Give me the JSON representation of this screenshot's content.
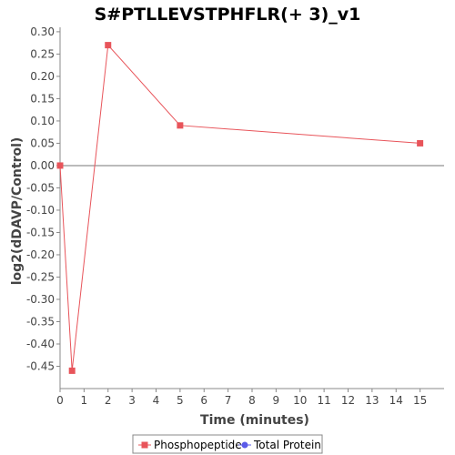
{
  "chart_data": {
    "type": "line",
    "title": "S#PTLLEVSTPHFLR(+ 3)_v1",
    "xlabel": "Time (minutes)",
    "ylabel": "log2(dDAVP/Control)",
    "xlim": [
      0,
      16
    ],
    "ylim": [
      -0.5,
      0.31
    ],
    "x_ticks": [
      0,
      1,
      2,
      3,
      4,
      5,
      6,
      7,
      8,
      9,
      10,
      11,
      12,
      13,
      14,
      15
    ],
    "y_ticks": [
      0.3,
      0.25,
      0.2,
      0.15,
      0.1,
      0.05,
      0.0,
      -0.05,
      -0.1,
      -0.15,
      -0.2,
      -0.25,
      -0.3,
      -0.35,
      -0.4,
      -0.45
    ],
    "y_tick_labels": [
      "0.30",
      "0.25",
      "0.20",
      "0.15",
      "0.10",
      "0.05",
      "0.00",
      "-0.05",
      "-0.10",
      "-0.15",
      "-0.20",
      "-0.25",
      "-0.30",
      "-0.35",
      "-0.40",
      "-0.45"
    ],
    "zero_line": true,
    "grid": false,
    "legend_position": "bottom",
    "series": [
      {
        "name": "Phosphopeptide",
        "color": "#e8545a",
        "marker": "square",
        "x": [
          0,
          0.5,
          2,
          5,
          15
        ],
        "y": [
          0.0,
          -0.46,
          0.27,
          0.09,
          0.05
        ]
      },
      {
        "name": "Total Protein",
        "color": "#5a5ae8",
        "marker": "circle",
        "x": [],
        "y": []
      }
    ]
  }
}
